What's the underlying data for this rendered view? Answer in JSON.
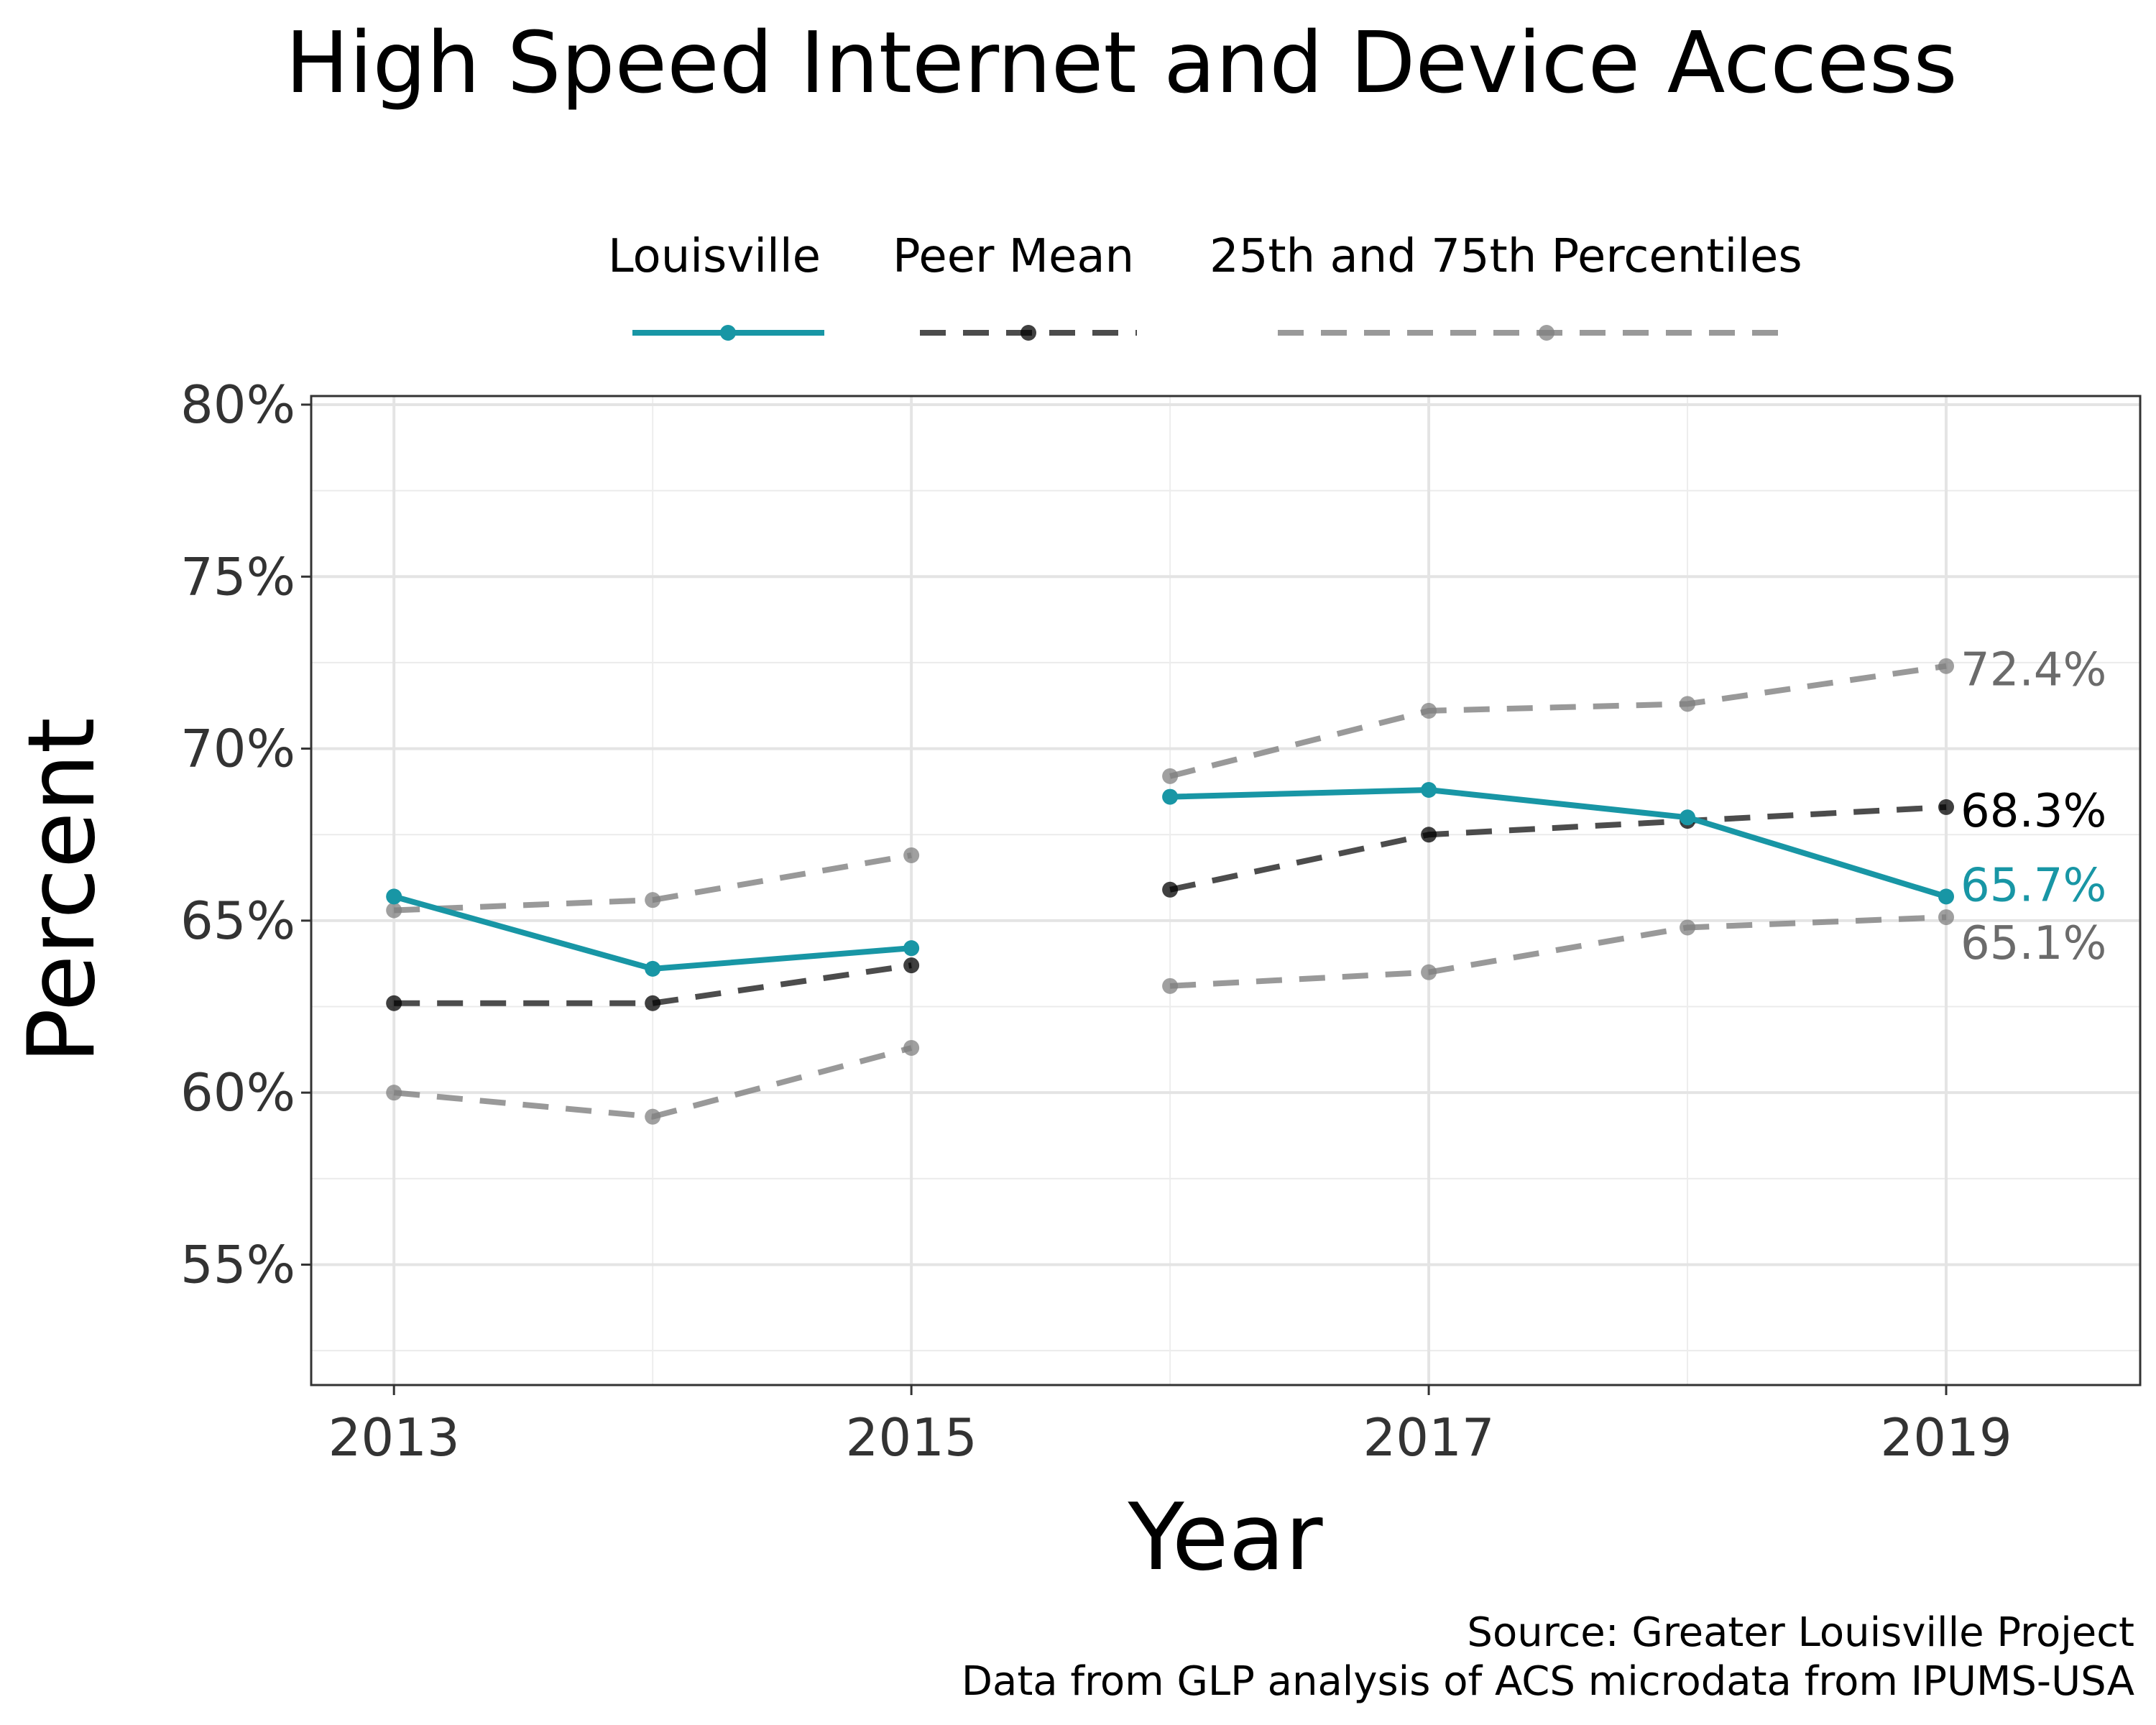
{
  "chart_data": {
    "type": "line",
    "title": "High Speed Internet and Device Access",
    "xlabel": "Year",
    "ylabel": "Percent",
    "x": [
      2013,
      2014,
      2015,
      2016,
      2017,
      2018,
      2019
    ],
    "x_ticks": [
      "2013",
      "2015",
      "2017",
      "2019"
    ],
    "y_ticks": [
      "55%",
      "60%",
      "65%",
      "70%",
      "75%",
      "80%"
    ],
    "xlim": [
      2012.68,
      2019.75
    ],
    "ylim": [
      51.5,
      80.25
    ],
    "grid": true,
    "legend_position": "top",
    "legend": [
      "Louisville",
      "Peer Mean",
      "25th and 75th Percentiles"
    ],
    "series": [
      {
        "name": "Louisville",
        "color": "#1896A5",
        "style": "solid",
        "values": [
          65.7,
          63.6,
          64.2,
          68.6,
          68.8,
          68.0,
          65.7
        ]
      },
      {
        "name": "Peer Mean",
        "color": "#000000",
        "style": "dashed",
        "values": [
          62.6,
          62.6,
          63.7,
          65.9,
          67.5,
          67.9,
          68.3
        ]
      },
      {
        "name": "25th Percentile",
        "color": "#808080",
        "style": "dashed",
        "values": [
          60.0,
          59.3,
          61.3,
          63.1,
          63.5,
          64.8,
          65.1
        ]
      },
      {
        "name": "75th Percentile",
        "color": "#808080",
        "style": "dashed",
        "values": [
          65.3,
          65.6,
          66.9,
          69.2,
          71.1,
          71.3,
          72.4
        ]
      }
    ],
    "end_labels": [
      {
        "text": "72.4%",
        "color": "#6b6b6b"
      },
      {
        "text": "68.3%",
        "color": "#000000"
      },
      {
        "text": "65.7%",
        "color": "#1896A5"
      },
      {
        "text": "65.1%",
        "color": "#6b6b6b"
      }
    ],
    "source": [
      "Source: Greater Louisville Project",
      "Data from GLP analysis of ACS microdata from IPUMS-USA"
    ]
  }
}
